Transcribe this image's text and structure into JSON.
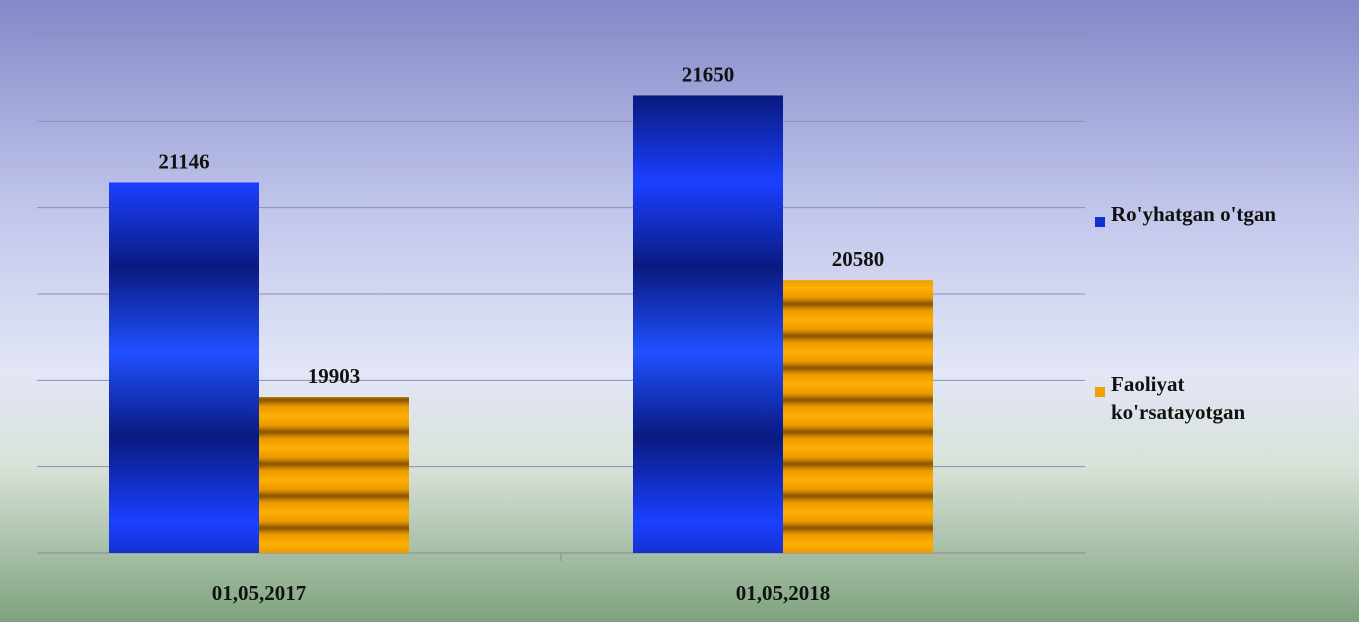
{
  "chart_data": {
    "type": "bar",
    "categories": [
      "01,05,2017",
      "01,05,2018"
    ],
    "series": [
      {
        "name": "Ro'yhatgan o'tgan",
        "color": "#1030d0",
        "values": [
          21146,
          21650
        ]
      },
      {
        "name": "Faoliyat ko'rsatayotgan",
        "color": "#f0a000",
        "values": [
          19903,
          20580
        ]
      }
    ],
    "ylim": [
      19000,
      22000
    ],
    "yticks": [
      19000,
      19500,
      20000,
      20500,
      21000,
      21500,
      22000
    ],
    "grid": true,
    "legend": "right"
  }
}
